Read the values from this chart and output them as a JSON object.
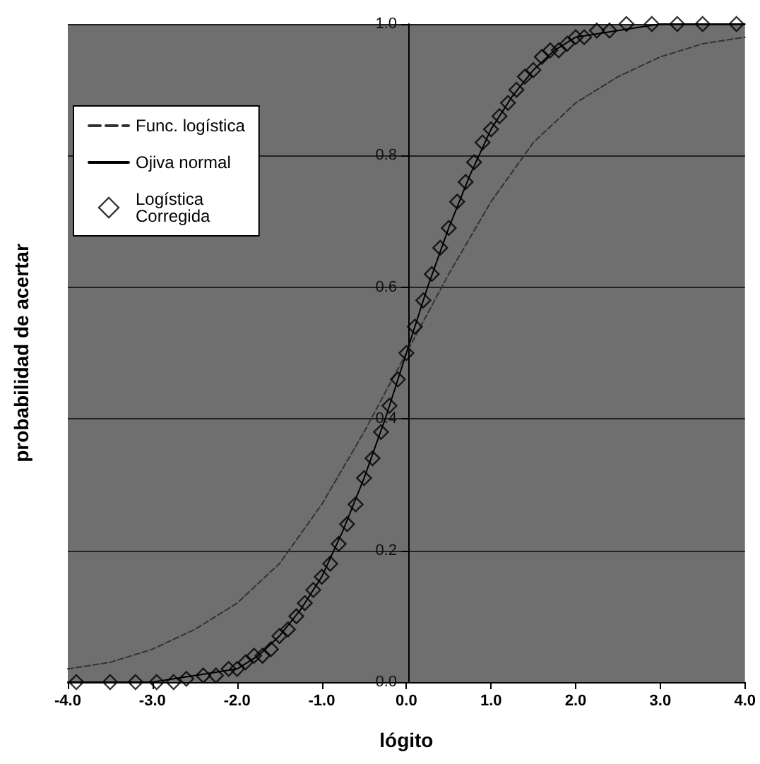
{
  "chart_data": {
    "type": "line",
    "xlabel": "lógito",
    "ylabel": "probabilidad de acertar",
    "xlim": [
      -4,
      4
    ],
    "xticks": [
      {
        "value": -4,
        "label": "-4.0"
      },
      {
        "value": -3,
        "label": "-3.0"
      },
      {
        "value": -2,
        "label": "-2.0"
      },
      {
        "value": -1,
        "label": "-1.0"
      },
      {
        "value": 0,
        "label": "0.0"
      },
      {
        "value": 1,
        "label": "1.0"
      },
      {
        "value": 2,
        "label": "2.0"
      },
      {
        "value": 3,
        "label": "3.0"
      },
      {
        "value": 4,
        "label": "4.0"
      }
    ],
    "ylim": [
      0,
      1
    ],
    "yticks": [
      {
        "value": 0,
        "label": "0.0"
      },
      {
        "value": 0.2,
        "label": "0.2"
      },
      {
        "value": 0.4,
        "label": "0.4"
      },
      {
        "value": 0.6,
        "label": "0.6"
      },
      {
        "value": 0.8,
        "label": "0.8"
      },
      {
        "value": 1,
        "label": "1.0"
      }
    ],
    "grid": "y",
    "legend": "top left",
    "series": [
      {
        "name": "Func. logística",
        "color": "#333333",
        "line_style": "dashed",
        "marker": "none",
        "x": [
          -4,
          -3.5,
          -3,
          -2.5,
          -2,
          -1.5,
          -1,
          -0.5,
          0,
          0.5,
          1,
          1.5,
          2,
          2.5,
          3,
          3.5,
          4
        ],
        "values": [
          0.02,
          0.03,
          0.05,
          0.08,
          0.12,
          0.18,
          0.27,
          0.38,
          0.5,
          0.62,
          0.73,
          0.82,
          0.88,
          0.92,
          0.95,
          0.97,
          0.98
        ]
      },
      {
        "name": "Ojiva normal",
        "color": "#000000",
        "line_style": "solid",
        "marker": "none",
        "x": [
          -4,
          -3.5,
          -3,
          -2.5,
          -2,
          -1.75,
          -1.5,
          -1.25,
          -1,
          -0.75,
          -0.5,
          -0.25,
          0,
          0.25,
          0.5,
          0.75,
          1,
          1.25,
          1.5,
          1.75,
          2,
          2.5,
          3,
          3.5,
          4
        ],
        "values": [
          0,
          0,
          0,
          0.01,
          0.02,
          0.04,
          0.07,
          0.11,
          0.16,
          0.23,
          0.31,
          0.4,
          0.5,
          0.6,
          0.69,
          0.77,
          0.84,
          0.89,
          0.93,
          0.96,
          0.98,
          0.99,
          1,
          1,
          1
        ]
      },
      {
        "name": "Logística Corregida",
        "type": "scatter",
        "color": "#000000",
        "marker": "diamond",
        "x": [
          -3.9,
          -3.5,
          -3.2,
          -2.95,
          -2.75,
          -2.6,
          -2.4,
          -2.25,
          -2.1,
          -2.0,
          -1.9,
          -1.8,
          -1.7,
          -1.6,
          -1.5,
          -1.4,
          -1.3,
          -1.2,
          -1.1,
          -1.0,
          -0.9,
          -0.8,
          -0.7,
          -0.6,
          -0.5,
          -0.4,
          -0.3,
          -0.2,
          -0.1,
          0,
          0.1,
          0.2,
          0.3,
          0.4,
          0.5,
          0.6,
          0.7,
          0.8,
          0.9,
          1.0,
          1.1,
          1.2,
          1.3,
          1.4,
          1.5,
          1.6,
          1.7,
          1.8,
          1.9,
          2.0,
          2.1,
          2.25,
          2.4,
          2.6,
          2.9,
          3.2,
          3.5,
          3.9
        ],
        "values": [
          0,
          0,
          0,
          0,
          0,
          0.005,
          0.01,
          0.01,
          0.02,
          0.02,
          0.03,
          0.04,
          0.04,
          0.05,
          0.07,
          0.08,
          0.1,
          0.12,
          0.14,
          0.16,
          0.18,
          0.21,
          0.24,
          0.27,
          0.31,
          0.34,
          0.38,
          0.42,
          0.46,
          0.5,
          0.54,
          0.58,
          0.62,
          0.66,
          0.69,
          0.73,
          0.76,
          0.79,
          0.82,
          0.84,
          0.86,
          0.88,
          0.9,
          0.92,
          0.93,
          0.95,
          0.96,
          0.96,
          0.97,
          0.98,
          0.98,
          0.99,
          0.99,
          1,
          1,
          1,
          1,
          1
        ]
      }
    ]
  }
}
